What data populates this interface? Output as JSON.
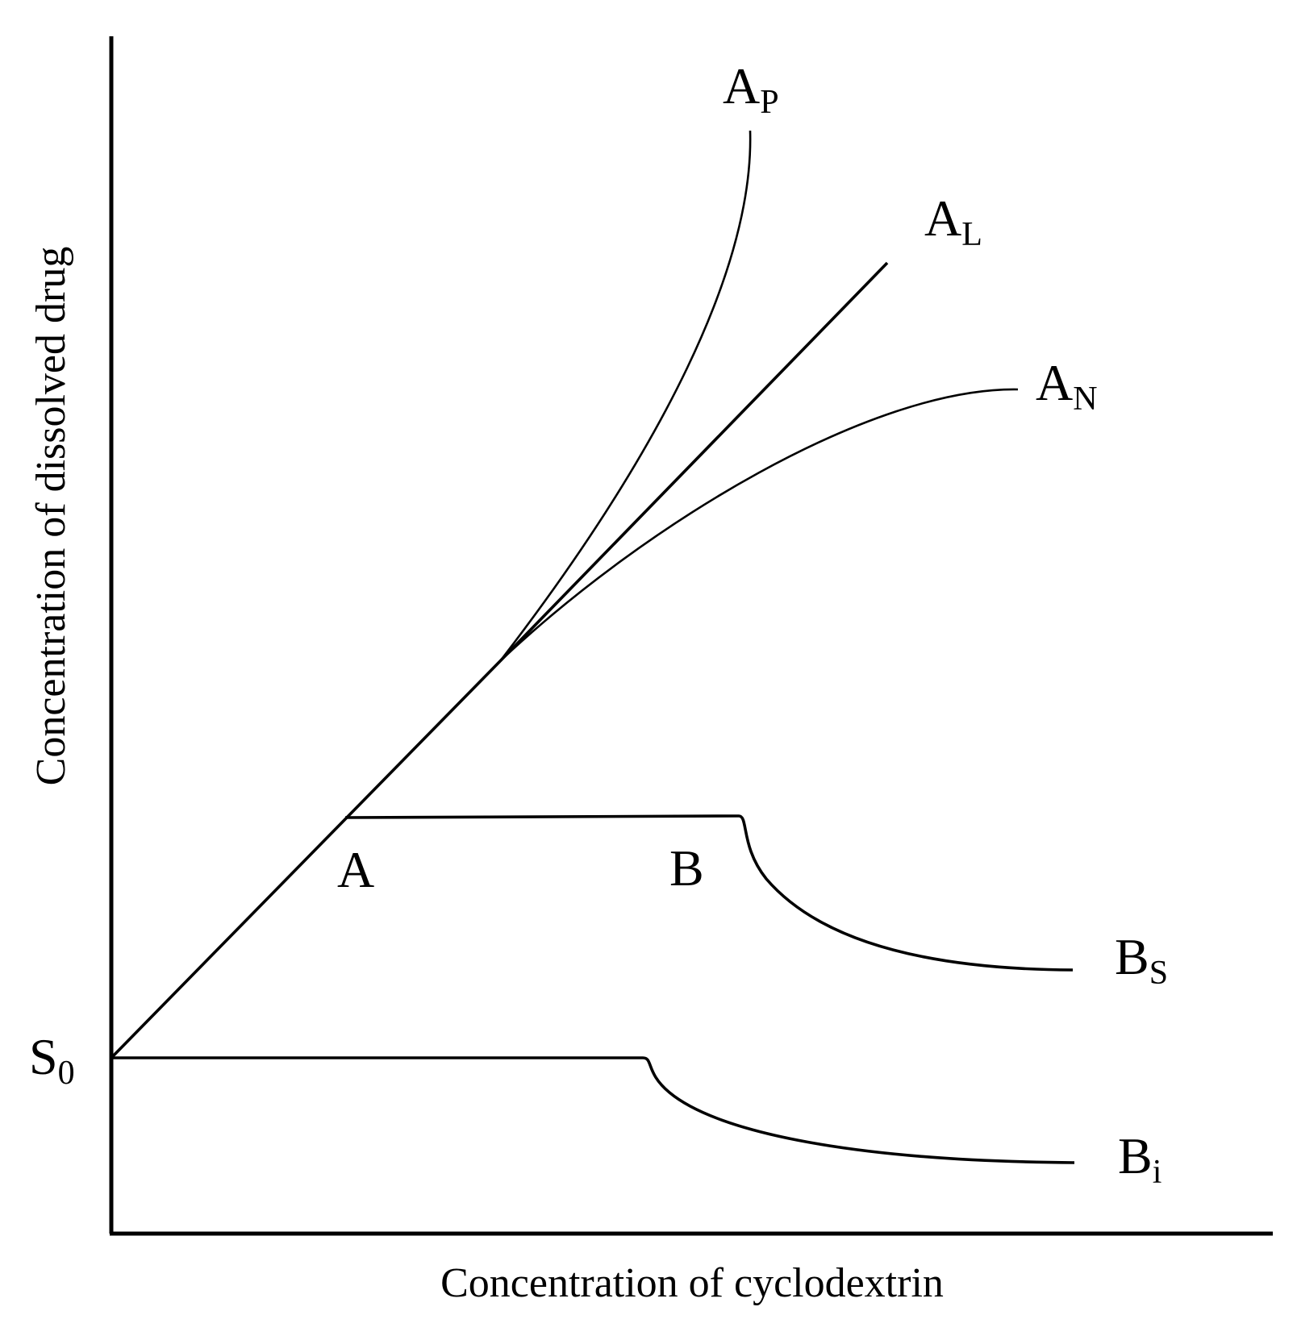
{
  "diagram": {
    "x_axis_label": "Concentration of cyclodextrin",
    "y_axis_label": "Concentration of dissolved drug",
    "labels": {
      "s0": {
        "main": "S",
        "sub": "0"
      },
      "ap": {
        "main": "A",
        "sub": "P"
      },
      "al": {
        "main": "A",
        "sub": "L"
      },
      "an": {
        "main": "A",
        "sub": "N"
      },
      "a": {
        "main": "A"
      },
      "b": {
        "main": "B"
      },
      "bs": {
        "main": "B",
        "sub": "S"
      },
      "bi": {
        "main": "B",
        "sub": "i"
      }
    },
    "curves": [
      "A_P",
      "A_L",
      "A_N",
      "B_S",
      "B_i"
    ]
  }
}
